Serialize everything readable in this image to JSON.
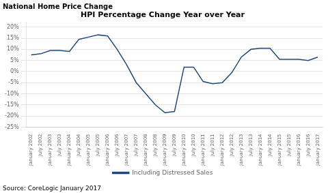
{
  "chart_data": {
    "type": "line",
    "title": "HPI Percentage Change Year over Year",
    "subtitle": "National Home Price Change",
    "annotations": [
      "Source: CoreLogic January 2017"
    ],
    "categories": [
      "January 2002",
      "July 2002",
      "January 2003",
      "July 2003",
      "January 2004",
      "July 2004",
      "January 2005",
      "July 2005",
      "January 2006",
      "July 2006",
      "January 2007",
      "July 2007",
      "January 2008",
      "July 2008",
      "January 2009",
      "July 2009",
      "January 2010",
      "July 2010",
      "January 2011",
      "July 2011",
      "January 2012",
      "July 2012",
      "January 2013",
      "July 2013",
      "January 2014",
      "July 2014",
      "January 2015",
      "July 2015",
      "January 2016",
      "July 2016",
      "January 2017"
    ],
    "series": [
      {
        "name": "Including Distressed Sales",
        "color": "#1F497D",
        "values": [
          7.5,
          8.0,
          9.5,
          9.5,
          9.0,
          14.5,
          15.5,
          16.5,
          16.0,
          10.0,
          3.0,
          -5.0,
          -10.0,
          -15.0,
          -18.5,
          -18.0,
          2.0,
          2.0,
          -4.5,
          -5.5,
          -5.0,
          -0.5,
          6.5,
          10.0,
          10.5,
          10.5,
          5.5,
          5.5,
          5.5,
          5.0,
          6.5
        ]
      }
    ],
    "ylim": [
      -25,
      22
    ],
    "yticks": [
      {
        "value": -25,
        "label": "-25%"
      },
      {
        "value": -20,
        "label": "-20%"
      },
      {
        "value": -15,
        "label": "-15%"
      },
      {
        "value": -10,
        "label": "-10%"
      },
      {
        "value": -5,
        "label": "-5%"
      },
      {
        "value": 0,
        "label": "0%"
      },
      {
        "value": 5,
        "label": "5%"
      },
      {
        "value": 10,
        "label": "10%"
      },
      {
        "value": 15,
        "label": "15%"
      },
      {
        "value": 20,
        "label": "20%"
      }
    ],
    "grid": "y",
    "legend": "bottom"
  }
}
